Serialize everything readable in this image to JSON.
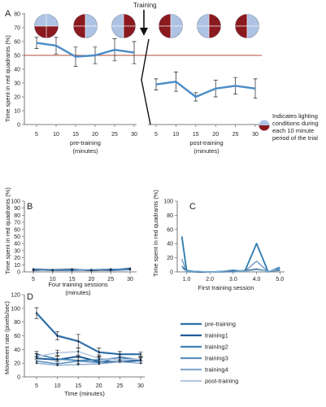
{
  "panels": {
    "a": {
      "letter": "A"
    },
    "b": {
      "letter": "B"
    },
    "c": {
      "letter": "C"
    },
    "d": {
      "letter": "D"
    }
  },
  "quadrant_colors": {
    "red": "#8b1a1f",
    "blue": "#aec3e3"
  },
  "series_colors": [
    "#2f6fa8",
    "#1f5a98",
    "#3f83b6",
    "#5b8fbd",
    "#88a9cd",
    "#b7c8df"
  ],
  "chart_data": [
    {
      "id": "A",
      "type": "line",
      "ylabel": "Time spent in red quadrants (%)",
      "ylim": [
        0,
        80
      ],
      "yticks": [
        0,
        10,
        20,
        30,
        40,
        50,
        60,
        70,
        80
      ],
      "annotation": "Training",
      "reference_line": 50,
      "legend_text": [
        "Indicates lighting",
        "conditions during",
        "each 10 minute",
        "period of the trial"
      ],
      "groups": [
        {
          "xlabel": [
            "pre-training",
            "(minutes)"
          ],
          "x": [
            5,
            10,
            15,
            20,
            25,
            30
          ],
          "y": [
            59,
            57,
            49,
            50,
            54,
            52
          ],
          "err": [
            4,
            6,
            7,
            6,
            8,
            8
          ]
        },
        {
          "xlabel": [
            "post-training",
            "(minutes)"
          ],
          "x": [
            5,
            10,
            15,
            20,
            25,
            30
          ],
          "y": [
            29,
            31,
            20,
            26,
            28,
            26
          ],
          "err": [
            4,
            7,
            3,
            6,
            6,
            7
          ]
        }
      ],
      "lighting_icons": [
        "red-bottom",
        "red-left",
        "red-right",
        "red-left",
        "red-right",
        "red-left"
      ]
    },
    {
      "id": "B",
      "type": "line",
      "xlabel": [
        "Four training sessions",
        "(minutes)"
      ],
      "ylabel": "Time spent in red quadrants (%)",
      "ylim": [
        0,
        100
      ],
      "yticks": [
        0,
        10,
        20,
        30,
        40,
        50,
        60,
        70,
        80,
        90,
        100
      ],
      "x": [
        5,
        10,
        15,
        20,
        25,
        30
      ],
      "series": [
        {
          "values": [
            4,
            3,
            3,
            2,
            3,
            5
          ]
        },
        {
          "values": [
            3,
            2,
            2,
            3,
            2,
            3
          ]
        },
        {
          "values": [
            2,
            3,
            4,
            2,
            3,
            4
          ]
        },
        {
          "values": [
            3,
            2,
            3,
            3,
            4,
            3
          ]
        }
      ]
    },
    {
      "id": "C",
      "type": "line",
      "xlabel": [
        "First training session"
      ],
      "ylabel": "Time spent in red quadrants (%)",
      "ylim": [
        0,
        100
      ],
      "yticks": [
        0,
        20,
        40,
        60,
        80,
        100
      ],
      "xticks": [
        1.0,
        2.0,
        3.0,
        4.0,
        5.0
      ],
      "xlim": [
        0.6,
        5.2
      ],
      "x": [
        0.8,
        1.0,
        1.5,
        2.0,
        2.5,
        3.0,
        3.5,
        4.0,
        4.5,
        5.0
      ],
      "series": [
        {
          "values": [
            50,
            2,
            0,
            0,
            0,
            1,
            1,
            40,
            0,
            5
          ]
        },
        {
          "values": [
            18,
            0,
            0,
            0,
            0,
            0,
            1,
            15,
            0,
            7
          ]
        },
        {
          "values": [
            8,
            1,
            0,
            0,
            1,
            2,
            2,
            4,
            1,
            2
          ]
        },
        {
          "values": [
            5,
            1,
            1,
            0,
            1,
            3,
            1,
            3,
            1,
            3
          ]
        }
      ]
    },
    {
      "id": "D",
      "type": "line",
      "xlabel": [
        "Time (minutes)"
      ],
      "ylabel": "Movement rate (pixels/sec)",
      "ylim": [
        0,
        120
      ],
      "yticks": [
        0,
        20,
        40,
        60,
        80,
        100,
        120
      ],
      "x": [
        5,
        10,
        15,
        20,
        25,
        30
      ],
      "legend": [
        "pre-training",
        "training1",
        "training2",
        "training3",
        "training4",
        "post-training"
      ],
      "series": [
        {
          "name": "pre-training",
          "values": [
            93,
            60,
            52,
            36,
            33,
            33
          ],
          "err": [
            8,
            6,
            10,
            6,
            4,
            3
          ]
        },
        {
          "name": "training1",
          "values": [
            27,
            25,
            30,
            22,
            22,
            24
          ]
        },
        {
          "name": "training2",
          "values": [
            33,
            26,
            24,
            25,
            28,
            24
          ],
          "err": [
            4,
            4,
            4,
            4,
            4,
            4
          ]
        },
        {
          "name": "training3",
          "values": [
            23,
            19,
            23,
            21,
            29,
            25
          ]
        },
        {
          "name": "training4",
          "values": [
            20,
            17,
            18,
            19,
            22,
            20
          ]
        },
        {
          "name": "post-training",
          "values": [
            30,
            35,
            37,
            27,
            25,
            26
          ],
          "err": [
            4,
            4,
            5,
            5,
            4,
            3
          ]
        }
      ]
    }
  ]
}
